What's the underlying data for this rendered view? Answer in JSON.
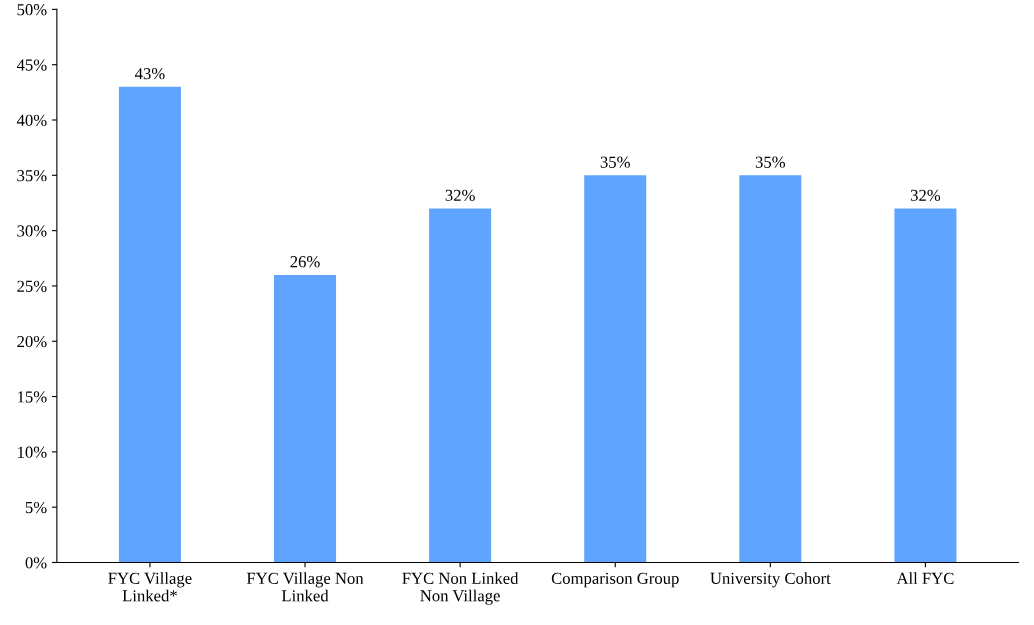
{
  "chart_data": {
    "type": "bar",
    "categories": [
      "FYC Village\nLinked*",
      "FYC Village Non\nLinked",
      "FYC Non Linked\nNon Village",
      "Comparison Group",
      "University Cohort",
      "All FYC"
    ],
    "values": [
      43,
      26,
      32,
      35,
      35,
      32
    ],
    "value_labels": [
      "43%",
      "26%",
      "32%",
      "35%",
      "35%",
      "32%"
    ],
    "color": "#5fa5ff",
    "ylim": [
      0,
      50
    ],
    "yticks": [
      {
        "value": 0,
        "label": "0%"
      },
      {
        "value": 5,
        "label": "5%"
      },
      {
        "value": 10,
        "label": "10%"
      },
      {
        "value": 15,
        "label": "15%"
      },
      {
        "value": 20,
        "label": "20%"
      },
      {
        "value": 25,
        "label": "25%"
      },
      {
        "value": 30,
        "label": "30%"
      },
      {
        "value": 35,
        "label": "35%"
      },
      {
        "value": 40,
        "label": "40%"
      },
      {
        "value": 45,
        "label": "45%"
      },
      {
        "value": 50,
        "label": "50%"
      }
    ],
    "grid": false
  }
}
